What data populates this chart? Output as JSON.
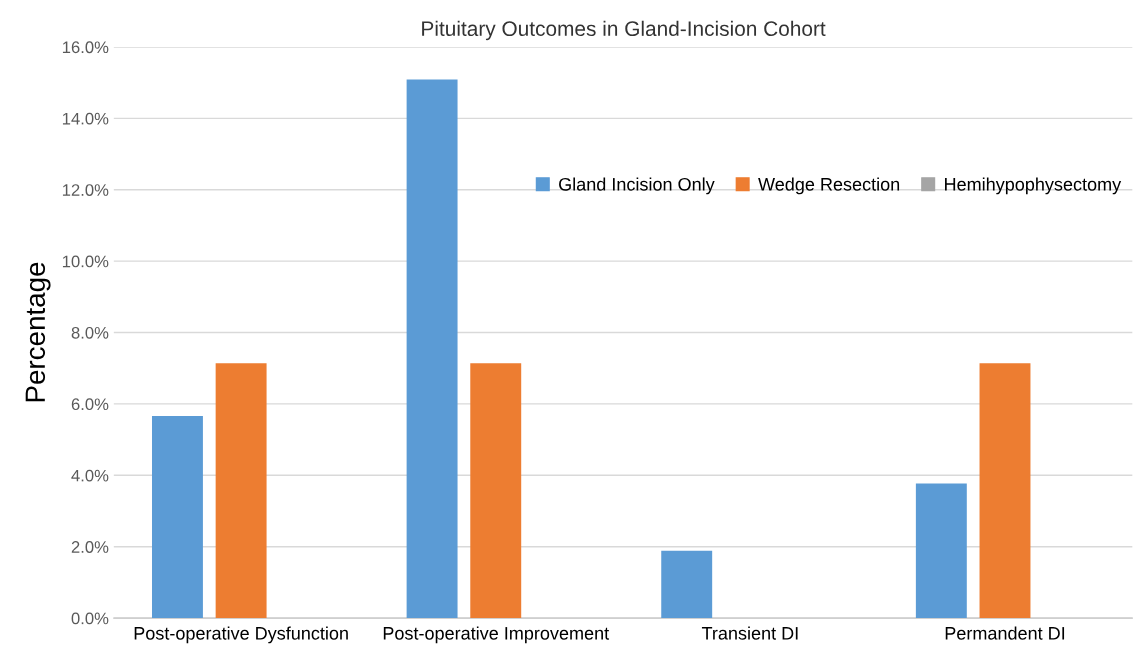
{
  "chart_data": {
    "type": "bar",
    "title": "Pituitary Outcomes in Gland-Incision Cohort",
    "ylabel": "Percentage",
    "categories": [
      "Post-operative Dysfunction",
      "Post-operative Improvement",
      "Transient DI",
      "Permandent DI"
    ],
    "series": [
      {
        "name": "Gland Incision Only",
        "color": "#5b9bd5",
        "values": [
          5.66,
          15.09,
          1.89,
          3.77
        ]
      },
      {
        "name": "Wedge Resection",
        "color": "#ed7d31",
        "values": [
          7.14,
          7.14,
          0,
          7.14
        ]
      },
      {
        "name": "Hemihypophysectomy",
        "color": "#a5a5a5",
        "values": [
          0,
          0,
          0,
          0
        ]
      }
    ],
    "ylim": [
      0,
      16
    ],
    "yticks": [
      {
        "value": 0,
        "label": "0.0%"
      },
      {
        "value": 2,
        "label": "2.0%"
      },
      {
        "value": 4,
        "label": "4.0%"
      },
      {
        "value": 6,
        "label": "6.0%"
      },
      {
        "value": 8,
        "label": "8.0%"
      },
      {
        "value": 10,
        "label": "10.0%"
      },
      {
        "value": 12,
        "label": "12.0%"
      },
      {
        "value": 14,
        "label": "14.0%"
      },
      {
        "value": 16,
        "label": "16.0%"
      }
    ],
    "grid": "y",
    "legend": "top right"
  }
}
